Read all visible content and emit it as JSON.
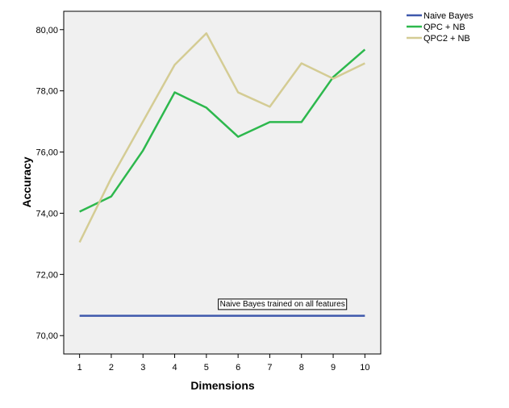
{
  "chart_data": {
    "type": "line",
    "title": "",
    "xlabel": "Dimensions",
    "ylabel": "Accuracy",
    "x": [
      1,
      2,
      3,
      4,
      5,
      6,
      7,
      8,
      9,
      10
    ],
    "x_tick_labels": [
      "1",
      "2",
      "3",
      "4",
      "5",
      "6",
      "7",
      "8",
      "9",
      "10"
    ],
    "xlim": [
      0.5,
      10.5
    ],
    "ylim": [
      69.4,
      80.6
    ],
    "y_ticks": [
      70,
      72,
      74,
      76,
      78,
      80
    ],
    "y_tick_labels": [
      "70,00",
      "72,00",
      "74,00",
      "76,00",
      "78,00",
      "80,00"
    ],
    "grid": false,
    "legend_position": "top-right, outside plot",
    "plot_background": "#f0f0f0",
    "series": [
      {
        "name": "Naive Bayes",
        "color": "#3e58ac",
        "values": [
          70.65,
          70.65,
          70.65,
          70.65,
          70.65,
          70.65,
          70.65,
          70.65,
          70.65,
          70.65
        ]
      },
      {
        "name": "QPC + NB",
        "color": "#2db84d",
        "values": [
          74.05,
          74.55,
          76.05,
          77.95,
          77.45,
          76.5,
          76.98,
          76.98,
          78.45,
          79.35
        ]
      },
      {
        "name": "QPC2 + NB",
        "color": "#d4cc94",
        "values": [
          73.05,
          75.15,
          77.0,
          78.85,
          79.88,
          77.95,
          77.48,
          78.9,
          78.4,
          78.9
        ]
      }
    ],
    "annotations": [
      {
        "text": "Naive Bayes trained on all features",
        "x": 7.4,
        "y": 71.05
      }
    ]
  }
}
